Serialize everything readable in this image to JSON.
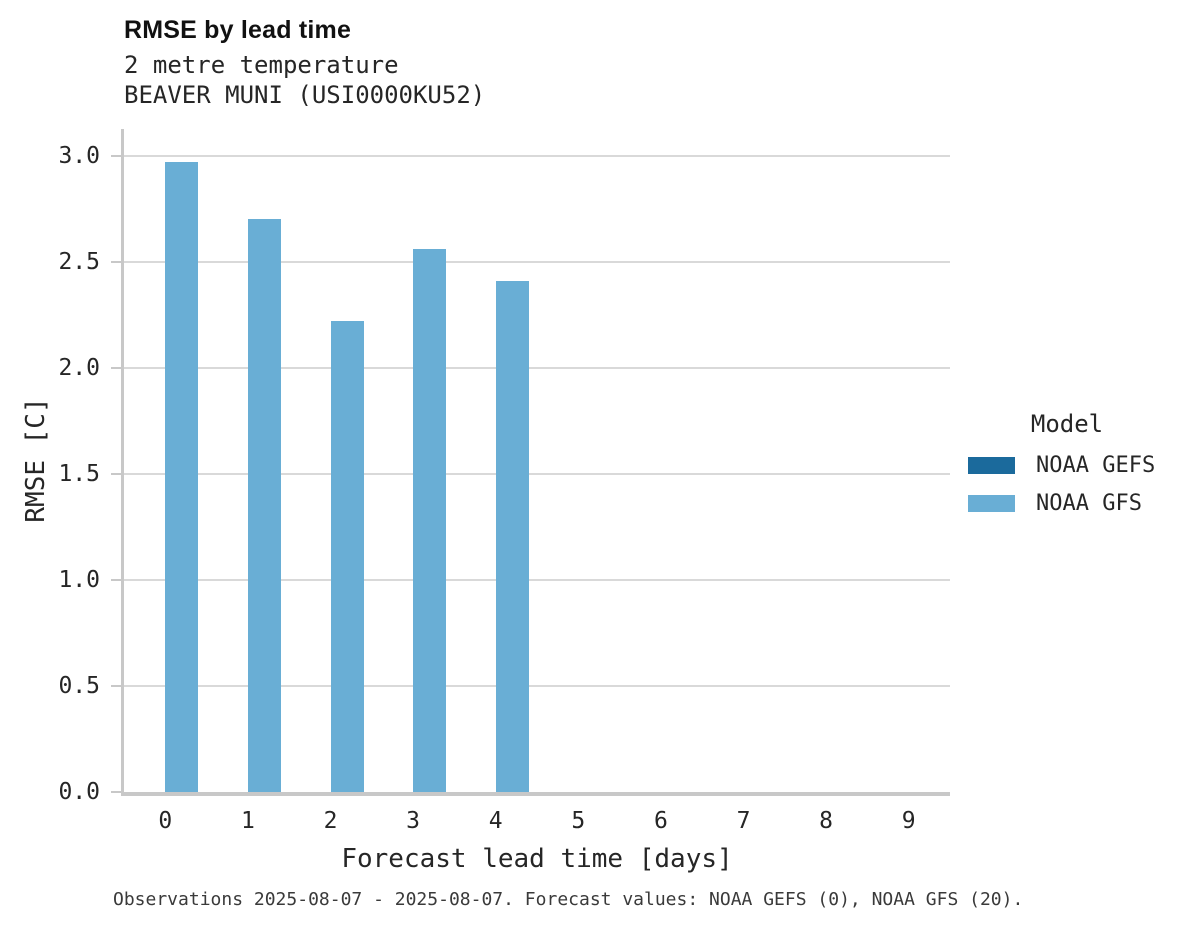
{
  "header": {
    "title": "RMSE by lead time",
    "subtitle_line1": "2 metre temperature",
    "subtitle_line2": "BEAVER MUNI (USI0000KU52)"
  },
  "chart_data": {
    "type": "bar",
    "title": "RMSE by lead time",
    "subtitle": [
      "2 metre temperature",
      "BEAVER MUNI (USI0000KU52)"
    ],
    "categories": [
      "0",
      "1",
      "2",
      "3",
      "4",
      "5",
      "6",
      "7",
      "8",
      "9"
    ],
    "series": [
      {
        "name": "NOAA GEFS",
        "color": "#1b6a9c",
        "values": [
          null,
          null,
          null,
          null,
          null,
          null,
          null,
          null,
          null,
          null
        ]
      },
      {
        "name": "NOAA GFS",
        "color": "#69aed5",
        "values": [
          2.97,
          2.7,
          2.22,
          2.56,
          2.41,
          null,
          null,
          null,
          null,
          null
        ]
      }
    ],
    "xlabel": "Forecast lead time [days]",
    "ylabel": "RMSE [C]",
    "ylim": [
      0,
      3.0
    ],
    "yticks": [
      0.0,
      0.5,
      1.0,
      1.5,
      2.0,
      2.5,
      3.0
    ],
    "ytick_labels": [
      "0.0",
      "0.5",
      "1.0",
      "1.5",
      "2.0",
      "2.5",
      "3.0"
    ],
    "legend": {
      "title": "Model",
      "position": "right"
    },
    "grid": "horizontal"
  },
  "footer": {
    "note": "Observations 2025-08-07 - 2025-08-07. Forecast values: NOAA GEFS (0), NOAA GFS (20)."
  }
}
